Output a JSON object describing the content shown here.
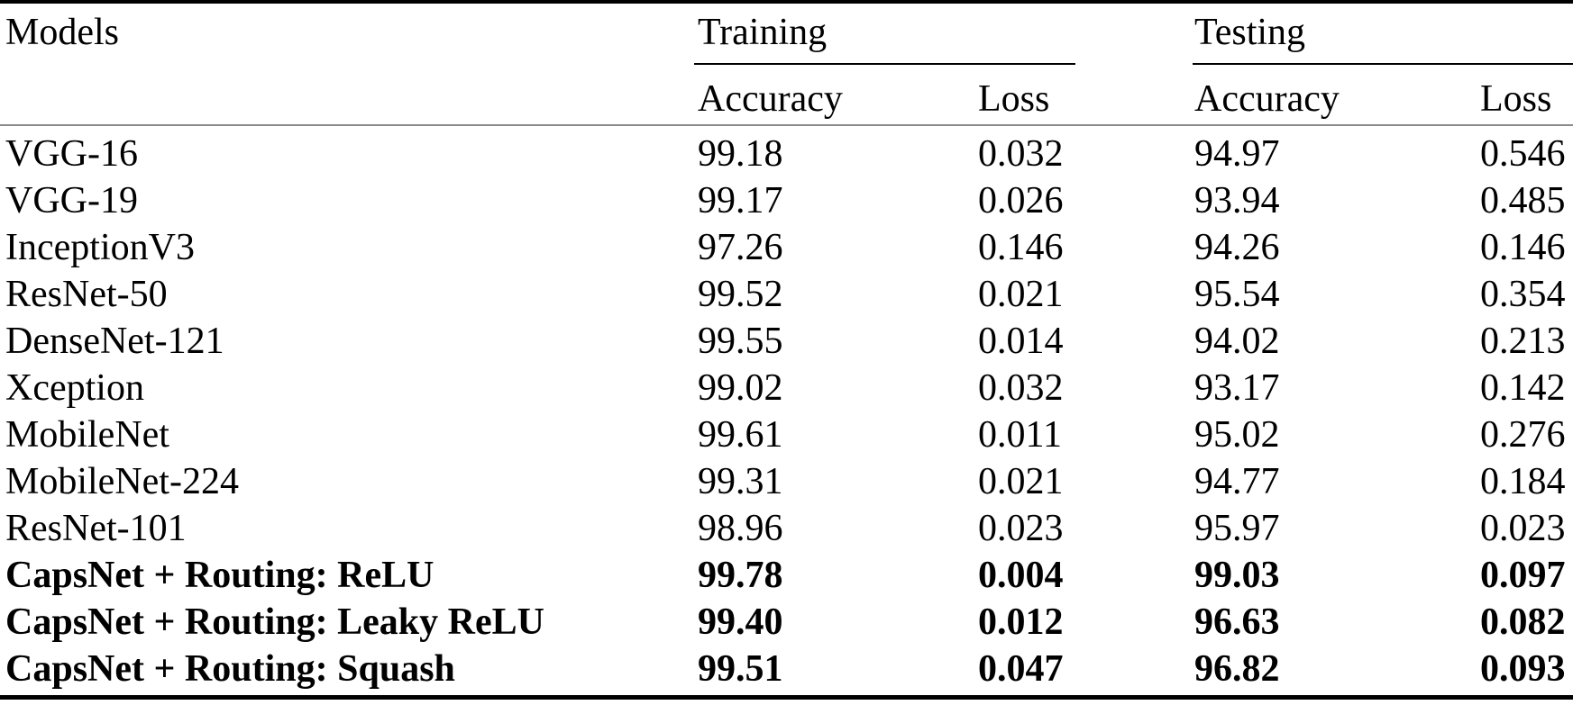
{
  "table": {
    "header": {
      "models_label": "Models",
      "groups": [
        {
          "label": "Training",
          "sub": [
            "Accuracy",
            "Loss"
          ]
        },
        {
          "label": "Testing",
          "sub": [
            "Accuracy",
            "Loss"
          ]
        }
      ],
      "training_label": "Training",
      "testing_label": "Testing",
      "training_accuracy_label": "Accuracy",
      "training_loss_label": "Loss",
      "testing_accuracy_label": "Accuracy",
      "testing_loss_label": "Loss"
    },
    "rows": [
      {
        "model": "VGG-16",
        "train_acc": "99.18",
        "train_loss": "0.032",
        "test_acc": "94.97",
        "test_loss": "0.546",
        "bold": false
      },
      {
        "model": "VGG-19",
        "train_acc": "99.17",
        "train_loss": "0.026",
        "test_acc": "93.94",
        "test_loss": "0.485",
        "bold": false
      },
      {
        "model": "InceptionV3",
        "train_acc": "97.26",
        "train_loss": "0.146",
        "test_acc": "94.26",
        "test_loss": "0.146",
        "bold": false
      },
      {
        "model": "ResNet-50",
        "train_acc": "99.52",
        "train_loss": "0.021",
        "test_acc": "95.54",
        "test_loss": "0.354",
        "bold": false
      },
      {
        "model": "DenseNet-121",
        "train_acc": "99.55",
        "train_loss": "0.014",
        "test_acc": "94.02",
        "test_loss": "0.213",
        "bold": false
      },
      {
        "model": "Xception",
        "train_acc": "99.02",
        "train_loss": "0.032",
        "test_acc": "93.17",
        "test_loss": "0.142",
        "bold": false
      },
      {
        "model": "MobileNet",
        "train_acc": "99.61",
        "train_loss": "0.011",
        "test_acc": "95.02",
        "test_loss": "0.276",
        "bold": false
      },
      {
        "model": "MobileNet-224",
        "train_acc": "99.31",
        "train_loss": "0.021",
        "test_acc": "94.77",
        "test_loss": "0.184",
        "bold": false
      },
      {
        "model": "ResNet-101",
        "train_acc": "98.96",
        "train_loss": "0.023",
        "test_acc": "95.97",
        "test_loss": "0.023",
        "bold": false
      },
      {
        "model": "CapsNet + Routing: ReLU",
        "train_acc": "99.78",
        "train_loss": "0.004",
        "test_acc": "99.03",
        "test_loss": "0.097",
        "bold": true
      },
      {
        "model": "CapsNet + Routing: Leaky ReLU",
        "train_acc": "99.40",
        "train_loss": "0.012",
        "test_acc": "96.63",
        "test_loss": "0.082",
        "bold": true
      },
      {
        "model": "CapsNet + Routing: Squash",
        "train_acc": "99.51",
        "train_loss": "0.047",
        "test_acc": "96.82",
        "test_loss": "0.093",
        "bold": true
      }
    ]
  },
  "colors": {
    "text": "#000000",
    "rule_dark": "#000000",
    "rule_gray": "#8a8a8a",
    "background": "#ffffff"
  }
}
